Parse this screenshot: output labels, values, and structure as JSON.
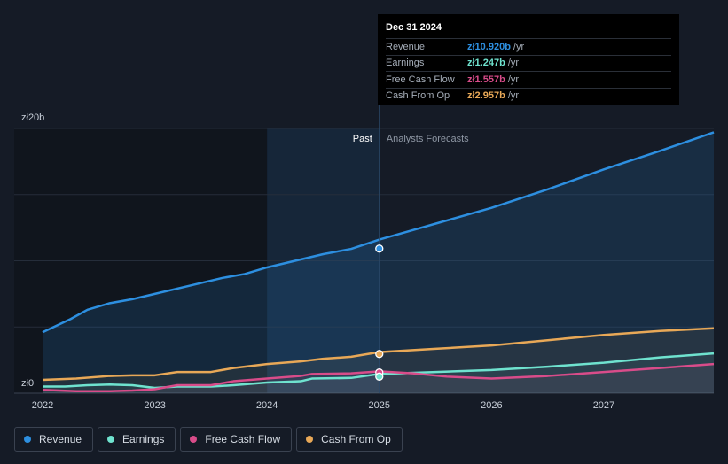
{
  "tooltip": {
    "date": "Dec 31 2024",
    "rows": [
      {
        "label": "Revenue",
        "value": "zł10.920b",
        "unit": "/yr",
        "color": "#2d8fe0"
      },
      {
        "label": "Earnings",
        "value": "zł1.247b",
        "unit": "/yr",
        "color": "#6fe3cf"
      },
      {
        "label": "Free Cash Flow",
        "value": "zł1.557b",
        "unit": "/yr",
        "color": "#d94c8a"
      },
      {
        "label": "Cash From Op",
        "value": "zł2.957b",
        "unit": "/yr",
        "color": "#e8a857"
      }
    ]
  },
  "legend": [
    {
      "label": "Revenue",
      "color": "#2d8fe0"
    },
    {
      "label": "Earnings",
      "color": "#6fe3cf"
    },
    {
      "label": "Free Cash Flow",
      "color": "#d94c8a"
    },
    {
      "label": "Cash From Op",
      "color": "#e8a857"
    }
  ],
  "chart_data": {
    "type": "line",
    "y_top_label": "zł20b",
    "y_bottom_label": "zł0",
    "ylim": [
      0,
      20
    ],
    "xlim": [
      2022,
      2027.98
    ],
    "past_label": "Past",
    "forecast_label": "Analysts Forecasts",
    "past_end": 2025.0,
    "highlight_start": 2024.0,
    "x_ticks": [
      2022,
      2023,
      2024,
      2025,
      2026,
      2027
    ],
    "x_tick_labels": [
      "2022",
      "2023",
      "2024",
      "2025",
      "2026",
      "2027"
    ],
    "series": [
      {
        "name": "Revenue",
        "color": "#2d8fe0",
        "marker_value": 10.92,
        "x": [
          2022.0,
          2022.25,
          2022.4,
          2022.6,
          2022.8,
          2023.0,
          2023.3,
          2023.6,
          2023.8,
          2024.0,
          2024.3,
          2024.5,
          2024.75,
          2025.0,
          2025.5,
          2026.0,
          2026.5,
          2027.0,
          2027.5,
          2027.98
        ],
        "values": [
          4.6,
          5.6,
          6.3,
          6.8,
          7.1,
          7.5,
          8.1,
          8.7,
          9.0,
          9.5,
          10.1,
          10.5,
          10.9,
          11.6,
          12.8,
          14.0,
          15.4,
          16.9,
          18.3,
          19.7
        ]
      },
      {
        "name": "Cash From Op",
        "color": "#e8a857",
        "marker_value": 2.96,
        "x": [
          2022.0,
          2022.3,
          2022.6,
          2022.8,
          2023.0,
          2023.2,
          2023.5,
          2023.7,
          2024.0,
          2024.3,
          2024.5,
          2024.75,
          2025.0,
          2025.5,
          2026.0,
          2026.5,
          2027.0,
          2027.5,
          2027.98
        ],
        "values": [
          1.0,
          1.1,
          1.3,
          1.35,
          1.35,
          1.6,
          1.6,
          1.9,
          2.2,
          2.4,
          2.6,
          2.75,
          3.1,
          3.35,
          3.6,
          4.0,
          4.4,
          4.7,
          4.9
        ]
      },
      {
        "name": "Free Cash Flow",
        "color": "#d94c8a",
        "marker_value": 1.56,
        "x": [
          2022.0,
          2022.3,
          2022.6,
          2022.8,
          2023.0,
          2023.2,
          2023.5,
          2023.7,
          2024.0,
          2024.3,
          2024.4,
          2024.75,
          2025.0,
          2025.3,
          2025.6,
          2026.0,
          2026.5,
          2027.0,
          2027.5,
          2027.98
        ],
        "values": [
          0.25,
          0.15,
          0.15,
          0.2,
          0.3,
          0.6,
          0.6,
          0.9,
          1.1,
          1.3,
          1.45,
          1.5,
          1.65,
          1.5,
          1.25,
          1.1,
          1.3,
          1.6,
          1.9,
          2.2
        ]
      },
      {
        "name": "Earnings",
        "color": "#6fe3cf",
        "marker_value": 1.25,
        "x": [
          2022.0,
          2022.2,
          2022.4,
          2022.6,
          2022.8,
          2023.0,
          2023.2,
          2023.5,
          2023.7,
          2024.0,
          2024.3,
          2024.4,
          2024.75,
          2025.0,
          2025.5,
          2026.0,
          2026.5,
          2027.0,
          2027.5,
          2027.98
        ],
        "values": [
          0.5,
          0.5,
          0.6,
          0.65,
          0.6,
          0.4,
          0.5,
          0.5,
          0.6,
          0.8,
          0.9,
          1.1,
          1.15,
          1.45,
          1.6,
          1.75,
          2.0,
          2.3,
          2.7,
          3.0
        ]
      }
    ]
  }
}
